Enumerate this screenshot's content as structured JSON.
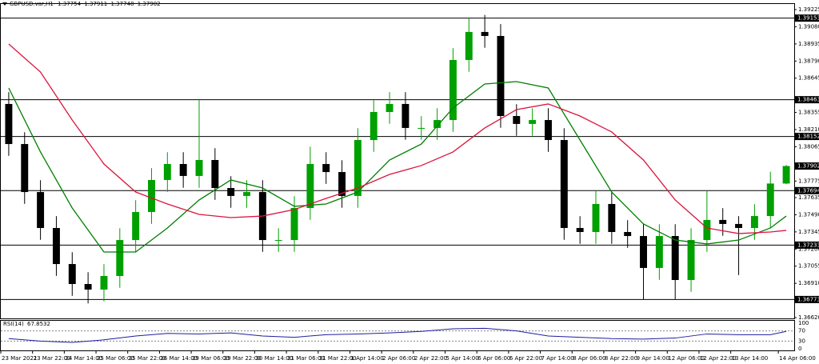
{
  "chart_data": {
    "type": "candlestick",
    "symbol": "GBPUSD.var,H1",
    "x": [
      0,
      1,
      2,
      3,
      4,
      5,
      6,
      7,
      8,
      9,
      10,
      11,
      12,
      13,
      14,
      15,
      16,
      17,
      18,
      19,
      20,
      21,
      22,
      23,
      24,
      25,
      26,
      27,
      28,
      29,
      30,
      31,
      32,
      33,
      34,
      35,
      36,
      37,
      38,
      39,
      40,
      41,
      42,
      43,
      44,
      45,
      46,
      47,
      48,
      49
    ],
    "open": [
      1.38427,
      1.38088,
      1.37682,
      1.37378,
      1.37073,
      1.36904,
      1.36857,
      1.36972,
      1.37276,
      1.37513,
      1.37784,
      1.37919,
      1.37818,
      1.37953,
      1.37716,
      1.37649,
      1.37682,
      1.37276,
      1.37276,
      1.37547,
      1.37919,
      1.37851,
      1.37649,
      1.38122,
      1.38359,
      1.38427,
      1.38224,
      1.38224,
      1.38291,
      1.38799,
      1.39036,
      1.39002,
      1.38325,
      1.38258,
      1.38291,
      1.38122,
      1.37378,
      1.37344,
      1.37581,
      1.37344,
      1.3731,
      1.3704,
      1.3731,
      1.36938,
      1.37276,
      1.37446,
      1.37412,
      1.37378,
      1.37479,
      1.37754
    ],
    "high": [
      1.38527,
      1.38188,
      1.37782,
      1.37478,
      1.37173,
      1.37004,
      1.37072,
      1.37376,
      1.37613,
      1.37884,
      1.38019,
      1.38019,
      1.38463,
      1.38053,
      1.37816,
      1.37782,
      1.37782,
      1.37376,
      1.37647,
      1.38065,
      1.38019,
      1.37951,
      1.38222,
      1.38459,
      1.38527,
      1.38527,
      1.38324,
      1.38391,
      1.38899,
      1.39153,
      1.3918,
      1.39102,
      1.38425,
      1.38391,
      1.38391,
      1.38222,
      1.37478,
      1.37694,
      1.37681,
      1.37444,
      1.3741,
      1.3741,
      1.3741,
      1.37376,
      1.37694,
      1.37546,
      1.37478,
      1.37579,
      1.37854,
      1.37911
    ],
    "low": [
      1.37988,
      1.37582,
      1.37278,
      1.36973,
      1.36804,
      1.3674,
      1.36757,
      1.36872,
      1.37176,
      1.37413,
      1.37684,
      1.37718,
      1.37718,
      1.37616,
      1.37549,
      1.37549,
      1.37176,
      1.37176,
      1.37176,
      1.37447,
      1.37751,
      1.37549,
      1.37549,
      1.38022,
      1.38259,
      1.38124,
      1.38124,
      1.38124,
      1.38191,
      1.38699,
      1.38902,
      1.38225,
      1.38158,
      1.38158,
      1.38022,
      1.37278,
      1.37244,
      1.37244,
      1.37244,
      1.3721,
      1.36773,
      1.3694,
      1.36773,
      1.36838,
      1.37176,
      1.37312,
      1.3698,
      1.37278,
      1.37379,
      1.37748
    ],
    "close": [
      1.38088,
      1.37682,
      1.37378,
      1.37073,
      1.36904,
      1.36857,
      1.36972,
      1.37276,
      1.37513,
      1.37784,
      1.37919,
      1.37818,
      1.37953,
      1.37716,
      1.37649,
      1.37682,
      1.37276,
      1.37276,
      1.37547,
      1.37919,
      1.37851,
      1.37649,
      1.38122,
      1.38359,
      1.38427,
      1.38224,
      1.38224,
      1.38291,
      1.38799,
      1.39036,
      1.39002,
      1.38325,
      1.38258,
      1.38291,
      1.38122,
      1.37378,
      1.37344,
      1.37581,
      1.37344,
      1.3731,
      1.3704,
      1.3731,
      1.36938,
      1.37276,
      1.37446,
      1.37412,
      1.37378,
      1.37479,
      1.37754,
      1.37902
    ],
    "up_color": "#00a000",
    "down_color": "#000000",
    "xlim": [
      -0.5,
      49.5
    ],
    "ylim": [
      1.3662,
      1.39225
    ],
    "yticks": [
      1.39225,
      {
        "value": 1.3908,
        "label": "1.39080"
      },
      1.38935,
      {
        "value": 1.3879,
        "label": "1.38790"
      },
      1.38645,
      1.38355,
      {
        "value": 1.3821,
        "label": "1.38210"
      },
      1.38065,
      1.37775,
      1.37635,
      {
        "value": 1.3749,
        "label": "1.37490"
      },
      1.37345,
      {
        "value": 1.372,
        "label": "1.37200"
      },
      1.37055,
      {
        "value": 1.3691,
        "label": "1.36910"
      },
      {
        "value": 1.3662,
        "label": "1.36620"
      }
    ],
    "xticks": [
      {
        "value": -0.5,
        "label": "23 Mar 2021"
      },
      {
        "value": 1.5,
        "label": "23 Mar 22:00"
      },
      {
        "value": 3.5,
        "label": "24 Mar 14:00"
      },
      {
        "value": 5.5,
        "label": "25 Mar 06:00"
      },
      {
        "value": 7.5,
        "label": "25 Mar 22:00"
      },
      {
        "value": 9.5,
        "label": "26 Mar 14:00"
      },
      {
        "value": 11.5,
        "label": "29 Mar 06:00"
      },
      {
        "value": 13.5,
        "label": "29 Mar 22:00"
      },
      {
        "value": 15.5,
        "label": "30 Mar 14:00"
      },
      {
        "value": 17.5,
        "label": "31 Mar 06:00"
      },
      {
        "value": 19.5,
        "label": "31 Mar 22:00"
      },
      {
        "value": 21.5,
        "label": "1 Apr 14:00"
      },
      {
        "value": 23.5,
        "label": "2 Apr 06:00"
      },
      {
        "value": 25.5,
        "label": "2 Apr 22:00"
      },
      {
        "value": 27.5,
        "label": "5 Apr 14:00"
      },
      {
        "value": 29.5,
        "label": "6 Apr 06:00"
      },
      {
        "value": 31.5,
        "label": "6 Apr 22:00"
      },
      {
        "value": 33.5,
        "label": "7 Apr 14:00"
      },
      {
        "value": 35.5,
        "label": "8 Apr 06:00"
      },
      {
        "value": 37.5,
        "label": "8 Apr 22:00"
      },
      {
        "value": 39.5,
        "label": "9 Apr 14:00"
      },
      {
        "value": 41.5,
        "label": "12 Apr 06:00"
      },
      {
        "value": 43.5,
        "label": "12 Apr 22:00"
      },
      {
        "value": 45.5,
        "label": "13 Apr 14:00"
      },
      {
        "value": 48.5,
        "label": "14 Apr 06:00"
      }
    ],
    "levels": [
      1.39153,
      1.38463,
      1.38152,
      1.37694,
      1.37233,
      1.36773
    ],
    "series": [
      {
        "color": "#008000",
        "x": [
          0,
          2,
          4,
          6,
          8,
          10,
          12,
          14,
          16,
          18,
          20,
          22,
          24,
          26,
          28,
          30,
          32,
          34,
          36,
          38,
          40,
          42,
          44,
          46,
          48,
          49
        ],
        "values": [
          1.38562,
          1.38021,
          1.37547,
          1.37175,
          1.37175,
          1.37378,
          1.37615,
          1.37784,
          1.37716,
          1.37561,
          1.37581,
          1.37682,
          1.37953,
          1.38088,
          1.38393,
          1.38596,
          1.38616,
          1.38562,
          1.38122,
          1.37682,
          1.37412,
          1.37276,
          1.37243,
          1.37276,
          1.37378,
          1.37479
        ]
      },
      {
        "color": "#dc143c",
        "x": [
          0,
          2,
          4,
          6,
          8,
          10,
          12,
          14,
          16,
          18,
          20,
          22,
          24,
          26,
          28,
          30,
          32,
          34,
          36,
          38,
          40,
          42,
          44,
          46,
          48,
          49
        ],
        "values": [
          1.38934,
          1.38697,
          1.38291,
          1.37919,
          1.37682,
          1.37581,
          1.37493,
          1.37466,
          1.37479,
          1.37534,
          1.37628,
          1.37716,
          1.37831,
          1.37906,
          1.38021,
          1.38224,
          1.38379,
          1.38427,
          1.38325,
          1.3819,
          1.37953,
          1.37615,
          1.37378,
          1.37331,
          1.37344,
          1.37358
        ]
      }
    ],
    "rsi": {
      "label": "RSI(14)",
      "color": "#1e1ea0",
      "x": [
        0,
        2,
        4,
        6,
        8,
        10,
        12,
        14,
        16,
        18,
        20,
        22,
        24,
        26,
        28,
        30,
        32,
        34,
        36,
        38,
        40,
        42,
        44,
        46,
        48,
        49
      ],
      "values": [
        40,
        30,
        25,
        35,
        50,
        60,
        58,
        62,
        50,
        45,
        55,
        58,
        62,
        68,
        78,
        80,
        70,
        50,
        45,
        40,
        38,
        42,
        58,
        55,
        55,
        67.8532
      ],
      "ylim": [
        0,
        100
      ],
      "yticks": [
        100,
        70,
        30,
        0
      ]
    }
  }
}
